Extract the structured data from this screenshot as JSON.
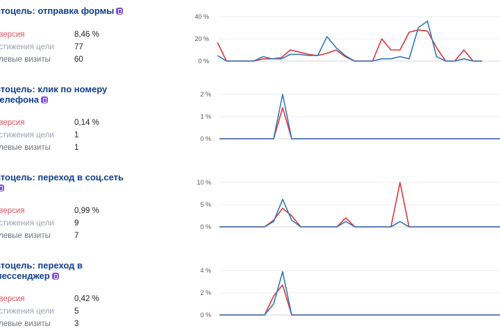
{
  "goals": [
    {
      "title": "втоцель: отправка формы",
      "badge_icon": "viber-icon",
      "metrics": [
        {
          "label": "нверсия",
          "value": "8,46 %"
        },
        {
          "label": "остижения цели",
          "value": "77"
        },
        {
          "label": "елевые визиты",
          "value": "60"
        }
      ],
      "chart_data": {
        "type": "line",
        "y_ticks": [
          "40 %",
          "20 %",
          "0 %"
        ],
        "ylim": [
          0,
          40
        ],
        "series": [
          {
            "color": "#e0323a",
            "values": [
              17,
              0,
              0,
              0,
              0,
              2,
              2,
              3,
              10,
              8,
              6,
              5,
              7,
              10,
              4,
              0,
              0,
              0,
              20,
              10,
              10,
              26,
              28,
              27,
              12,
              0,
              0,
              10,
              0,
              0
            ]
          },
          {
            "color": "#2e78b8",
            "values": [
              5,
              0,
              0,
              0,
              0,
              4,
              2,
              2,
              6,
              6,
              5,
              5,
              22,
              12,
              5,
              0,
              0,
              0,
              2,
              2,
              4,
              2,
              30,
              36,
              4,
              0,
              0,
              2,
              0,
              0
            ]
          }
        ]
      }
    },
    {
      "title": "втоцель: клик по номеру телефона",
      "badge_icon": "viber-icon",
      "metrics": [
        {
          "label": "нверсия",
          "value": "0,14 %"
        },
        {
          "label": "остижения цели",
          "value": "1"
        },
        {
          "label": "елевые визиты",
          "value": "1"
        }
      ],
      "chart_data": {
        "type": "line",
        "y_ticks": [
          "2 %",
          "1 %",
          "0 %"
        ],
        "ylim": [
          0,
          2
        ],
        "series": [
          {
            "color": "#e0323a",
            "values": [
              0,
              0,
              0,
              0,
              0,
              0,
              0,
              1.4,
              0,
              0,
              0,
              0,
              0,
              0,
              0,
              0,
              0,
              0,
              0,
              0,
              0,
              0,
              0,
              0,
              0,
              0,
              0,
              0,
              0,
              0,
              0,
              0,
              0
            ]
          },
          {
            "color": "#2e78b8",
            "values": [
              0,
              0,
              0,
              0,
              0,
              0,
              0,
              2,
              0,
              0,
              0,
              0,
              0,
              0,
              0,
              0,
              0,
              0,
              0,
              0,
              0,
              0,
              0,
              0,
              0,
              0,
              0,
              0,
              0,
              0,
              0,
              0,
              0
            ]
          }
        ]
      }
    },
    {
      "title": "втоцель: переход в соц.сеть",
      "badge_icon": "viber-icon",
      "metrics": [
        {
          "label": "нверсия",
          "value": "0,99 %"
        },
        {
          "label": "остижения цели",
          "value": "9"
        },
        {
          "label": "елевые визиты",
          "value": "7"
        }
      ],
      "chart_data": {
        "type": "line",
        "y_ticks": [
          "10 %",
          "5 %",
          "0 %"
        ],
        "ylim": [
          0,
          10
        ],
        "series": [
          {
            "color": "#e0323a",
            "values": [
              0,
              0,
              0,
              0,
              0,
              0,
              1.5,
              4.2,
              2.5,
              0,
              0,
              0,
              0,
              0,
              2,
              0,
              0,
              0,
              0,
              0,
              10,
              0,
              0,
              0,
              0,
              0,
              0,
              0,
              0,
              0,
              0,
              0,
              0
            ]
          },
          {
            "color": "#2e78b8",
            "values": [
              0,
              0,
              0,
              0,
              0,
              0,
              1.2,
              6.2,
              1.5,
              0,
              0,
              0,
              0,
              0,
              1.2,
              0,
              0,
              0,
              0,
              0,
              1.2,
              0,
              0,
              0,
              0,
              0,
              0,
              0,
              0,
              0,
              0,
              0,
              0
            ]
          }
        ]
      }
    },
    {
      "title": "втоцель: переход в мессенджер",
      "badge_icon": "viber-icon",
      "metrics": [
        {
          "label": "нверсия",
          "value": "0,42 %"
        },
        {
          "label": "остижения цели",
          "value": "5"
        },
        {
          "label": "елевые визиты",
          "value": "3"
        }
      ],
      "chart_data": {
        "type": "line",
        "y_ticks": [
          "4 %",
          "2 %",
          "0 %"
        ],
        "ylim": [
          0,
          4
        ],
        "series": [
          {
            "color": "#e0323a",
            "values": [
              0,
              0,
              0,
              0,
              0,
              0,
              1.7,
              2.7,
              0,
              0,
              0,
              0,
              0,
              0,
              0,
              0,
              0,
              0,
              0,
              0,
              0,
              0,
              0,
              0,
              0,
              0,
              0,
              0,
              0,
              0,
              0,
              0,
              0
            ]
          },
          {
            "color": "#2e78b8",
            "values": [
              0,
              0,
              0,
              0,
              0,
              0,
              1,
              3.9,
              0,
              0,
              0,
              0,
              0,
              0,
              0,
              0,
              0,
              0,
              0,
              0,
              0,
              0,
              0,
              0,
              0,
              0,
              0,
              0,
              0,
              0,
              0,
              0,
              0
            ]
          }
        ]
      }
    }
  ]
}
